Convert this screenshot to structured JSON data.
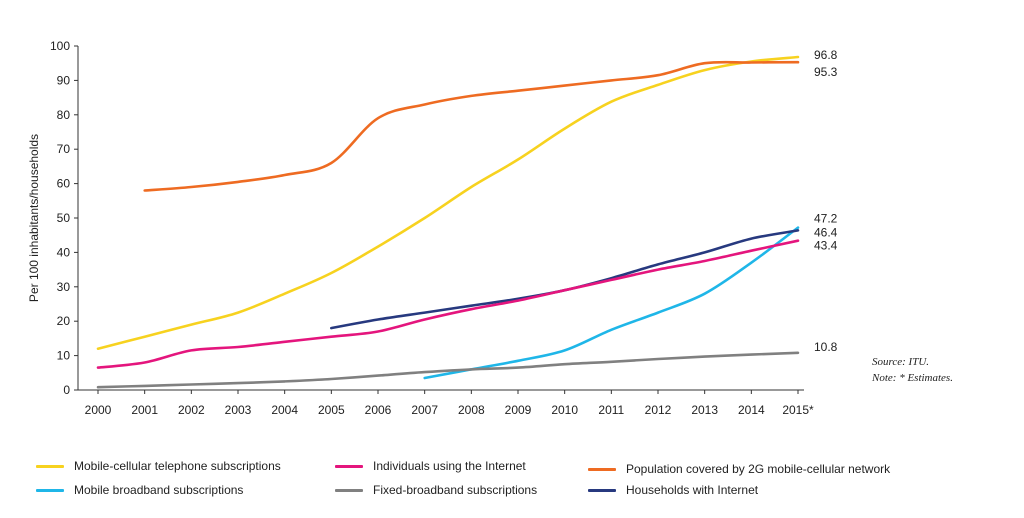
{
  "chart_data": {
    "type": "line",
    "ylabel": "Per 100 inhabitants/households",
    "xlabel": "",
    "ylim": [
      0,
      100
    ],
    "yticks": [
      0,
      10,
      20,
      30,
      40,
      50,
      60,
      70,
      80,
      90,
      100
    ],
    "ytick_labels": [
      "0",
      "10",
      "20",
      "30",
      "40",
      "50",
      "60",
      "70",
      "80",
      "90",
      "100"
    ],
    "x": [
      2000,
      2001,
      2002,
      2003,
      2004,
      2005,
      2006,
      2007,
      2008,
      2009,
      2010,
      2011,
      2012,
      2013,
      2014,
      2015
    ],
    "xtick_labels": [
      "2000",
      "2001",
      "2002",
      "2003",
      "2004",
      "2005",
      "2006",
      "2007",
      "2008",
      "2009",
      "2010",
      "2011",
      "2012",
      "2013",
      "2014",
      "2015*"
    ],
    "series": [
      {
        "name": "Mobile-cellular telephone subscriptions",
        "color": "#f7d21f",
        "x": [
          2000,
          2001,
          2002,
          2003,
          2004,
          2005,
          2006,
          2007,
          2008,
          2009,
          2010,
          2011,
          2012,
          2013,
          2014,
          2015
        ],
        "values": [
          12,
          15.5,
          19,
          22.5,
          28,
          34,
          41.7,
          50,
          59,
          67,
          76,
          83.8,
          88.7,
          93,
          95.5,
          96.8
        ],
        "end_label": "96.8"
      },
      {
        "name": "Population covered by 2G mobile-cellular network",
        "color": "#ee6b22",
        "x": [
          2001,
          2002,
          2003,
          2004,
          2005,
          2006,
          2007,
          2008,
          2009,
          2010,
          2011,
          2012,
          2013,
          2014,
          2015
        ],
        "values": [
          58,
          59,
          60.5,
          62.5,
          66,
          79,
          83,
          85.5,
          87,
          88.5,
          90,
          91.5,
          95,
          95.2,
          95.3
        ],
        "end_label": "95.3"
      },
      {
        "name": "Mobile broadband subscriptions",
        "color": "#1fb6e8",
        "x": [
          2007,
          2008,
          2009,
          2010,
          2011,
          2012,
          2013,
          2014,
          2015
        ],
        "values": [
          3.5,
          6,
          8.5,
          11.5,
          17.5,
          22.5,
          28,
          37,
          47.2
        ],
        "end_label": "47.2"
      },
      {
        "name": "Households with Internet",
        "color": "#27397f",
        "x": [
          2005,
          2006,
          2007,
          2008,
          2009,
          2010,
          2011,
          2012,
          2013,
          2014,
          2015
        ],
        "values": [
          18,
          20.5,
          22.5,
          24.5,
          26.5,
          29,
          32.5,
          36.5,
          40,
          44,
          46.4
        ],
        "end_label": "46.4"
      },
      {
        "name": "Individuals using the Internet",
        "color": "#e4157d",
        "x": [
          2000,
          2001,
          2002,
          2003,
          2004,
          2005,
          2006,
          2007,
          2008,
          2009,
          2010,
          2011,
          2012,
          2013,
          2014,
          2015
        ],
        "values": [
          6.5,
          8,
          11.5,
          12.5,
          14,
          15.5,
          17,
          20.5,
          23.5,
          26,
          29,
          32,
          35,
          37.5,
          40.5,
          43.4
        ],
        "end_label": "43.4"
      },
      {
        "name": "Fixed-broadband subscriptions",
        "color": "#808080",
        "x": [
          2000,
          2001,
          2002,
          2003,
          2004,
          2005,
          2006,
          2007,
          2008,
          2009,
          2010,
          2011,
          2012,
          2013,
          2014,
          2015
        ],
        "values": [
          0.8,
          1.2,
          1.6,
          2,
          2.5,
          3.2,
          4.2,
          5.2,
          6,
          6.5,
          7.5,
          8.2,
          9,
          9.7,
          10.3,
          10.8
        ],
        "end_label": "10.8"
      }
    ],
    "annotations": [
      "Source: ITU.",
      "Note: * Estimates."
    ],
    "legend_position": "bottom"
  },
  "notes": {
    "source": "Source: ITU.",
    "estimates": "Note: * Estimates."
  },
  "legend": [
    {
      "label": "Mobile-cellular telephone subscriptions",
      "color": "#f7d21f"
    },
    {
      "label": "Individuals using the Internet",
      "color": "#e4157d"
    },
    {
      "label": "Population covered by 2G mobile-cellular network",
      "color": "#ee6b22"
    },
    {
      "label": "Mobile broadband subscriptions",
      "color": "#1fb6e8"
    },
    {
      "label": "Fixed-broadband subscriptions",
      "color": "#808080"
    },
    {
      "label": "Households with Internet",
      "color": "#27397f"
    }
  ]
}
